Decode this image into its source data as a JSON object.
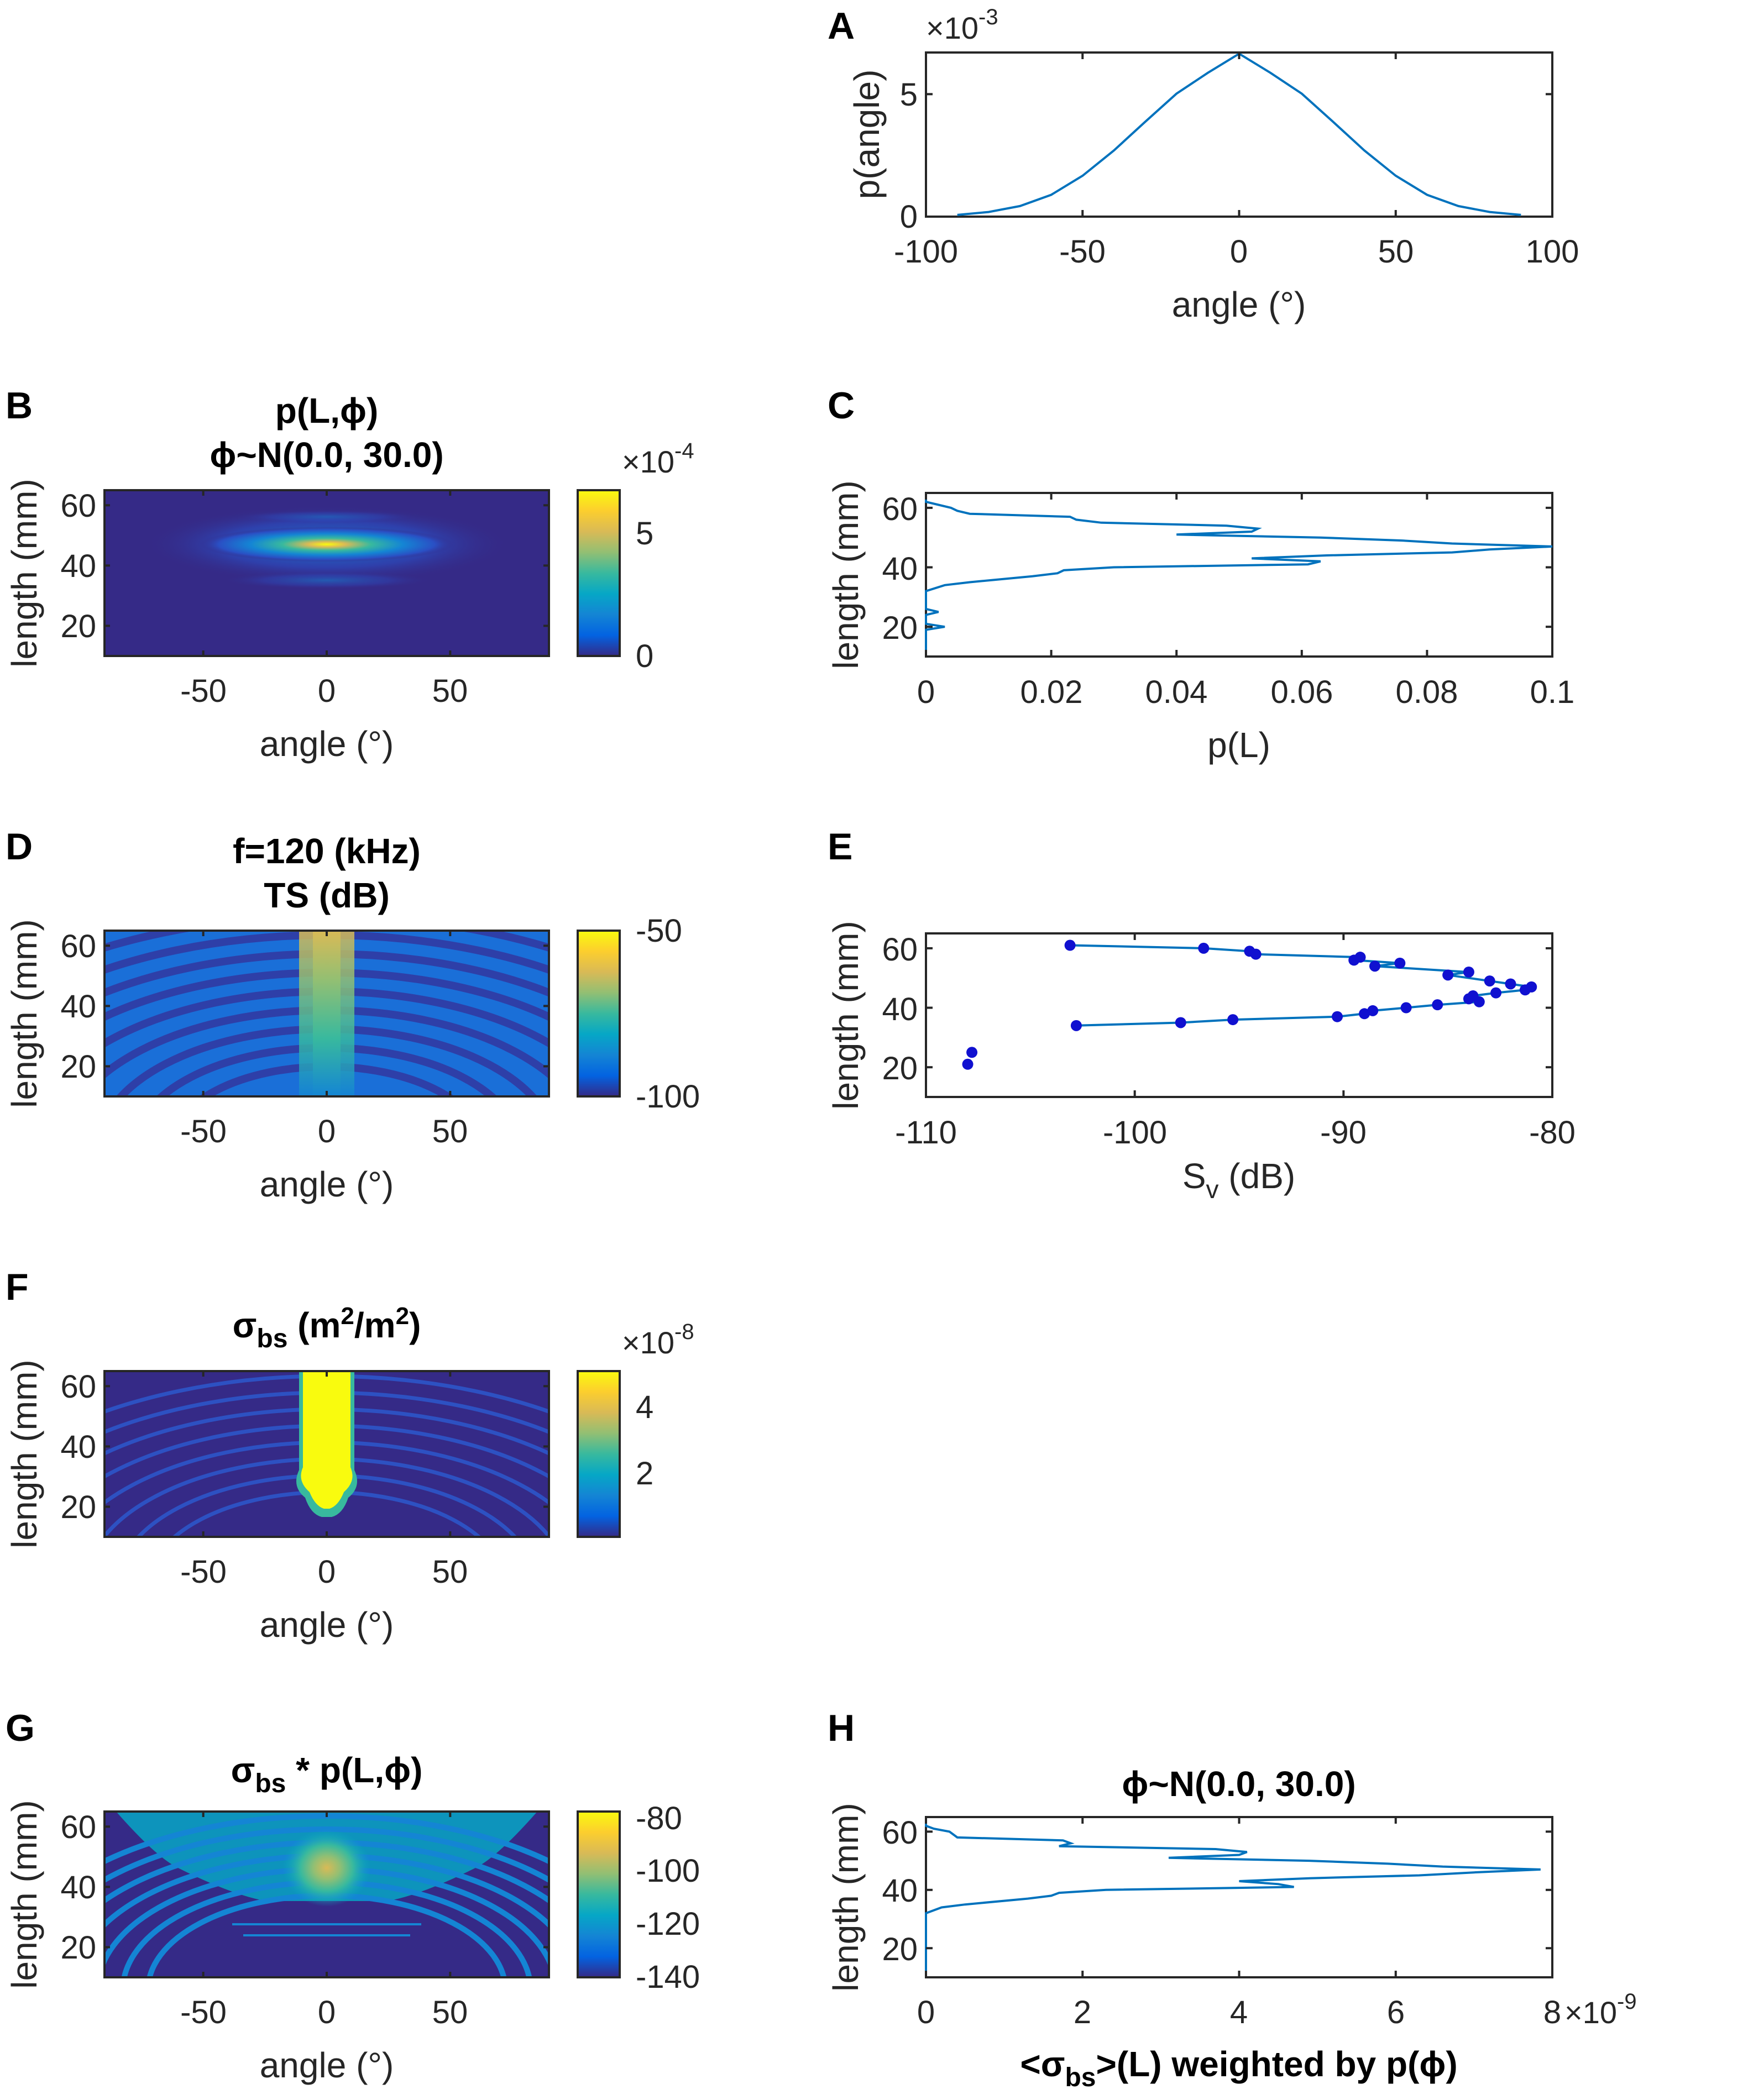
{
  "figure": {
    "panels": [
      {
        "id": "A",
        "letter": "A"
      },
      {
        "id": "B",
        "letter": "B"
      },
      {
        "id": "C",
        "letter": "C"
      },
      {
        "id": "D",
        "letter": "D"
      },
      {
        "id": "E",
        "letter": "E"
      },
      {
        "id": "F",
        "letter": "F"
      },
      {
        "id": "G",
        "letter": "G"
      },
      {
        "id": "H",
        "letter": "H"
      }
    ]
  },
  "colors": {
    "line": "#0072BD",
    "marker": "#1010D0",
    "axis": "#262626",
    "parula": [
      "#352A87",
      "#0363E1",
      "#1485D4",
      "#06A7C6",
      "#38B99E",
      "#92BF73",
      "#D9BA56",
      "#FCCE2E",
      "#F9FB0E"
    ]
  },
  "chart_data": [
    {
      "panel": "A",
      "type": "line",
      "title": "",
      "xlabel": "angle (°)",
      "ylabel": "p(angle)",
      "xlim": [
        -100,
        100
      ],
      "ylim": [
        0,
        6.7
      ],
      "xticks": [
        "-100",
        "-50",
        "0",
        "50",
        "100"
      ],
      "yticks": [
        "0",
        "5"
      ],
      "y_exponent_prefix": "×10",
      "y_exponent": "-3",
      "series": [
        {
          "name": "p(angle)",
          "x": [
            -90,
            -80,
            -70,
            -60,
            -50,
            -40,
            -30,
            -20,
            -10,
            0,
            10,
            20,
            30,
            40,
            50,
            60,
            70,
            80,
            90
          ],
          "y": [
            0.07,
            0.19,
            0.43,
            0.89,
            1.67,
            2.7,
            3.87,
            5.02,
            5.87,
            6.65,
            5.87,
            5.02,
            3.87,
            2.7,
            1.67,
            0.89,
            0.43,
            0.19,
            0.07
          ]
        }
      ]
    },
    {
      "panel": "B",
      "type": "heatmap",
      "title_line1": "p(L,ϕ)",
      "title_line2": "ϕ~N(0.0, 30.0)",
      "xlabel": "angle (°)",
      "ylabel": "length (mm)",
      "xlim": [
        -90,
        90
      ],
      "ylim": [
        10,
        65
      ],
      "xticks": [
        "-50",
        "0",
        "50"
      ],
      "yticks": [
        "20",
        "40",
        "60"
      ],
      "colorbar": {
        "ticks": [
          "0",
          "5"
        ],
        "values": [
          0,
          5
        ],
        "range": [
          0,
          6.65
        ],
        "exponent_prefix": "×10",
        "exponent": "-4"
      }
    },
    {
      "panel": "C",
      "type": "line",
      "title": "",
      "xlabel": "p(L)",
      "ylabel": "length (mm)",
      "xlim": [
        0,
        0.1
      ],
      "ylim": [
        10,
        65
      ],
      "xticks": [
        "0",
        "0.02",
        "0.04",
        "0.06",
        "0.08",
        "0.1"
      ],
      "yticks": [
        "20",
        "40",
        "60"
      ],
      "series": [
        {
          "name": "p(L)",
          "points": [
            [
              0,
              10
            ],
            [
              0,
              19
            ],
            [
              0.003,
              20
            ],
            [
              0,
              21
            ],
            [
              0,
              24
            ],
            [
              0.002,
              25
            ],
            [
              0,
              26
            ],
            [
              0,
              32
            ],
            [
              0.003,
              34
            ],
            [
              0.007,
              35
            ],
            [
              0.017,
              37
            ],
            [
              0.021,
              38
            ],
            [
              0.022,
              39
            ],
            [
              0.03,
              40
            ],
            [
              0.061,
              41
            ],
            [
              0.063,
              42
            ],
            [
              0.052,
              43
            ],
            [
              0.064,
              44
            ],
            [
              0.084,
              45
            ],
            [
              0.09,
              46
            ],
            [
              0.1,
              47
            ],
            [
              0.084,
              48
            ],
            [
              0.076,
              49
            ],
            [
              0.063,
              50
            ],
            [
              0.04,
              51
            ],
            [
              0.052,
              52
            ],
            [
              0.053,
              53
            ],
            [
              0.048,
              54
            ],
            [
              0.028,
              55
            ],
            [
              0.024,
              56
            ],
            [
              0.023,
              57
            ],
            [
              0.007,
              58
            ],
            [
              0.005,
              59
            ],
            [
              0.004,
              60
            ],
            [
              0.002,
              61
            ],
            [
              0,
              62
            ],
            [
              0,
              65
            ]
          ]
        }
      ]
    },
    {
      "panel": "D",
      "type": "heatmap",
      "title_line1": "f=120 (kHz)",
      "title_line2": "TS (dB)",
      "xlabel": "angle (°)",
      "ylabel": "length (mm)",
      "xlim": [
        -90,
        90
      ],
      "ylim": [
        10,
        65
      ],
      "xticks": [
        "-50",
        "0",
        "50"
      ],
      "yticks": [
        "20",
        "40",
        "60"
      ],
      "colorbar": {
        "ticks": [
          "-50",
          "-100"
        ],
        "values": [
          -50,
          -100
        ],
        "range": [
          -100,
          -50
        ]
      }
    },
    {
      "panel": "E",
      "type": "scatter",
      "title": "",
      "xlabel": "S",
      "xlabel_sub": "v",
      "xlabel_suffix": " (dB)",
      "ylabel": "length (mm)",
      "xlim": [
        -110,
        -80
      ],
      "ylim": [
        10,
        65
      ],
      "xticks": [
        "-110",
        "-100",
        "-90",
        "-80"
      ],
      "yticks": [
        "20",
        "40",
        "60"
      ],
      "series": [
        {
          "name": "Sv",
          "points": [
            [
              -108,
              21
            ],
            [
              -107.8,
              25
            ],
            [
              -102.8,
              34
            ],
            [
              -97.8,
              35
            ],
            [
              -95.3,
              36
            ],
            [
              -90.3,
              37
            ],
            [
              -89,
              38
            ],
            [
              -88.6,
              39
            ],
            [
              -87,
              40
            ],
            [
              -85.5,
              41
            ],
            [
              -83.5,
              42
            ],
            [
              -84,
              43
            ],
            [
              -83.8,
              44
            ],
            [
              -82.7,
              45
            ],
            [
              -81.3,
              46
            ],
            [
              -81,
              47
            ],
            [
              -82,
              48
            ],
            [
              -83,
              49
            ],
            [
              -85,
              51
            ],
            [
              -84,
              52
            ],
            [
              -88.5,
              54
            ],
            [
              -87.3,
              55
            ],
            [
              -89.5,
              56
            ],
            [
              -89.2,
              57
            ],
            [
              -94.2,
              58
            ],
            [
              -94.5,
              59
            ],
            [
              -96.7,
              60
            ],
            [
              -103.1,
              61
            ]
          ],
          "connected_from_index": 2
        }
      ]
    },
    {
      "panel": "F",
      "type": "heatmap",
      "title_main": "σ",
      "title_sub": "bs",
      "title_rest": " (m",
      "title_sup1": "2",
      "title_mid": "/m",
      "title_sup2": "2",
      "title_end": ")",
      "xlabel": "angle (°)",
      "ylabel": "length (mm)",
      "xlim": [
        -90,
        90
      ],
      "ylim": [
        10,
        65
      ],
      "xticks": [
        "-50",
        "0",
        "50"
      ],
      "yticks": [
        "20",
        "40",
        "60"
      ],
      "colorbar": {
        "ticks": [
          "4",
          "2"
        ],
        "values": [
          4,
          2
        ],
        "range": [
          0,
          5
        ],
        "exponent_prefix": "×10",
        "exponent": "-8"
      }
    },
    {
      "panel": "G",
      "type": "heatmap",
      "title_main": "σ",
      "title_sub": "bs",
      "title_rest": " * p(L,ϕ)",
      "xlabel": "angle (°)",
      "ylabel": "length (mm)",
      "xlim": [
        -90,
        90
      ],
      "ylim": [
        10,
        65
      ],
      "xticks": [
        "-50",
        "0",
        "50"
      ],
      "yticks": [
        "20",
        "40",
        "60"
      ],
      "colorbar": {
        "ticks": [
          "-80",
          "-100",
          "-120",
          "-140"
        ],
        "values": [
          -80,
          -100,
          -120,
          -140
        ],
        "range": [
          -140,
          -77
        ]
      }
    },
    {
      "panel": "H",
      "type": "line",
      "title": "ϕ~N(0.0, 30.0)",
      "xlabel_pre": "<σ",
      "xlabel_sub": "bs",
      "xlabel_post": ">(L) weighted by p(ϕ)",
      "ylabel": "length (mm)",
      "xlim": [
        0,
        8
      ],
      "ylim": [
        10,
        65
      ],
      "xticks": [
        "0",
        "2",
        "4",
        "6",
        "8"
      ],
      "yticks": [
        "20",
        "40",
        "60"
      ],
      "x_exponent_prefix": "×10",
      "x_exponent": "-9",
      "series": [
        {
          "name": "weighted sigma_bs",
          "points": [
            [
              0,
              10
            ],
            [
              0,
              32
            ],
            [
              0.2,
              34
            ],
            [
              0.5,
              35
            ],
            [
              1.3,
              37
            ],
            [
              1.6,
              38
            ],
            [
              1.7,
              39
            ],
            [
              2.3,
              40
            ],
            [
              4.7,
              41
            ],
            [
              4.5,
              42
            ],
            [
              4.0,
              43
            ],
            [
              4.9,
              44
            ],
            [
              6.3,
              45
            ],
            [
              7.0,
              46
            ],
            [
              7.85,
              47
            ],
            [
              6.6,
              48
            ],
            [
              5.9,
              49
            ],
            [
              4.9,
              50
            ],
            [
              3.1,
              51
            ],
            [
              4.0,
              52
            ],
            [
              4.1,
              53
            ],
            [
              3.7,
              54
            ],
            [
              1.7,
              55
            ],
            [
              1.85,
              56
            ],
            [
              1.75,
              57
            ],
            [
              0.4,
              58
            ],
            [
              0.35,
              59
            ],
            [
              0.3,
              60
            ],
            [
              0.1,
              61
            ],
            [
              0,
              62
            ],
            [
              0,
              65
            ]
          ]
        }
      ]
    }
  ]
}
